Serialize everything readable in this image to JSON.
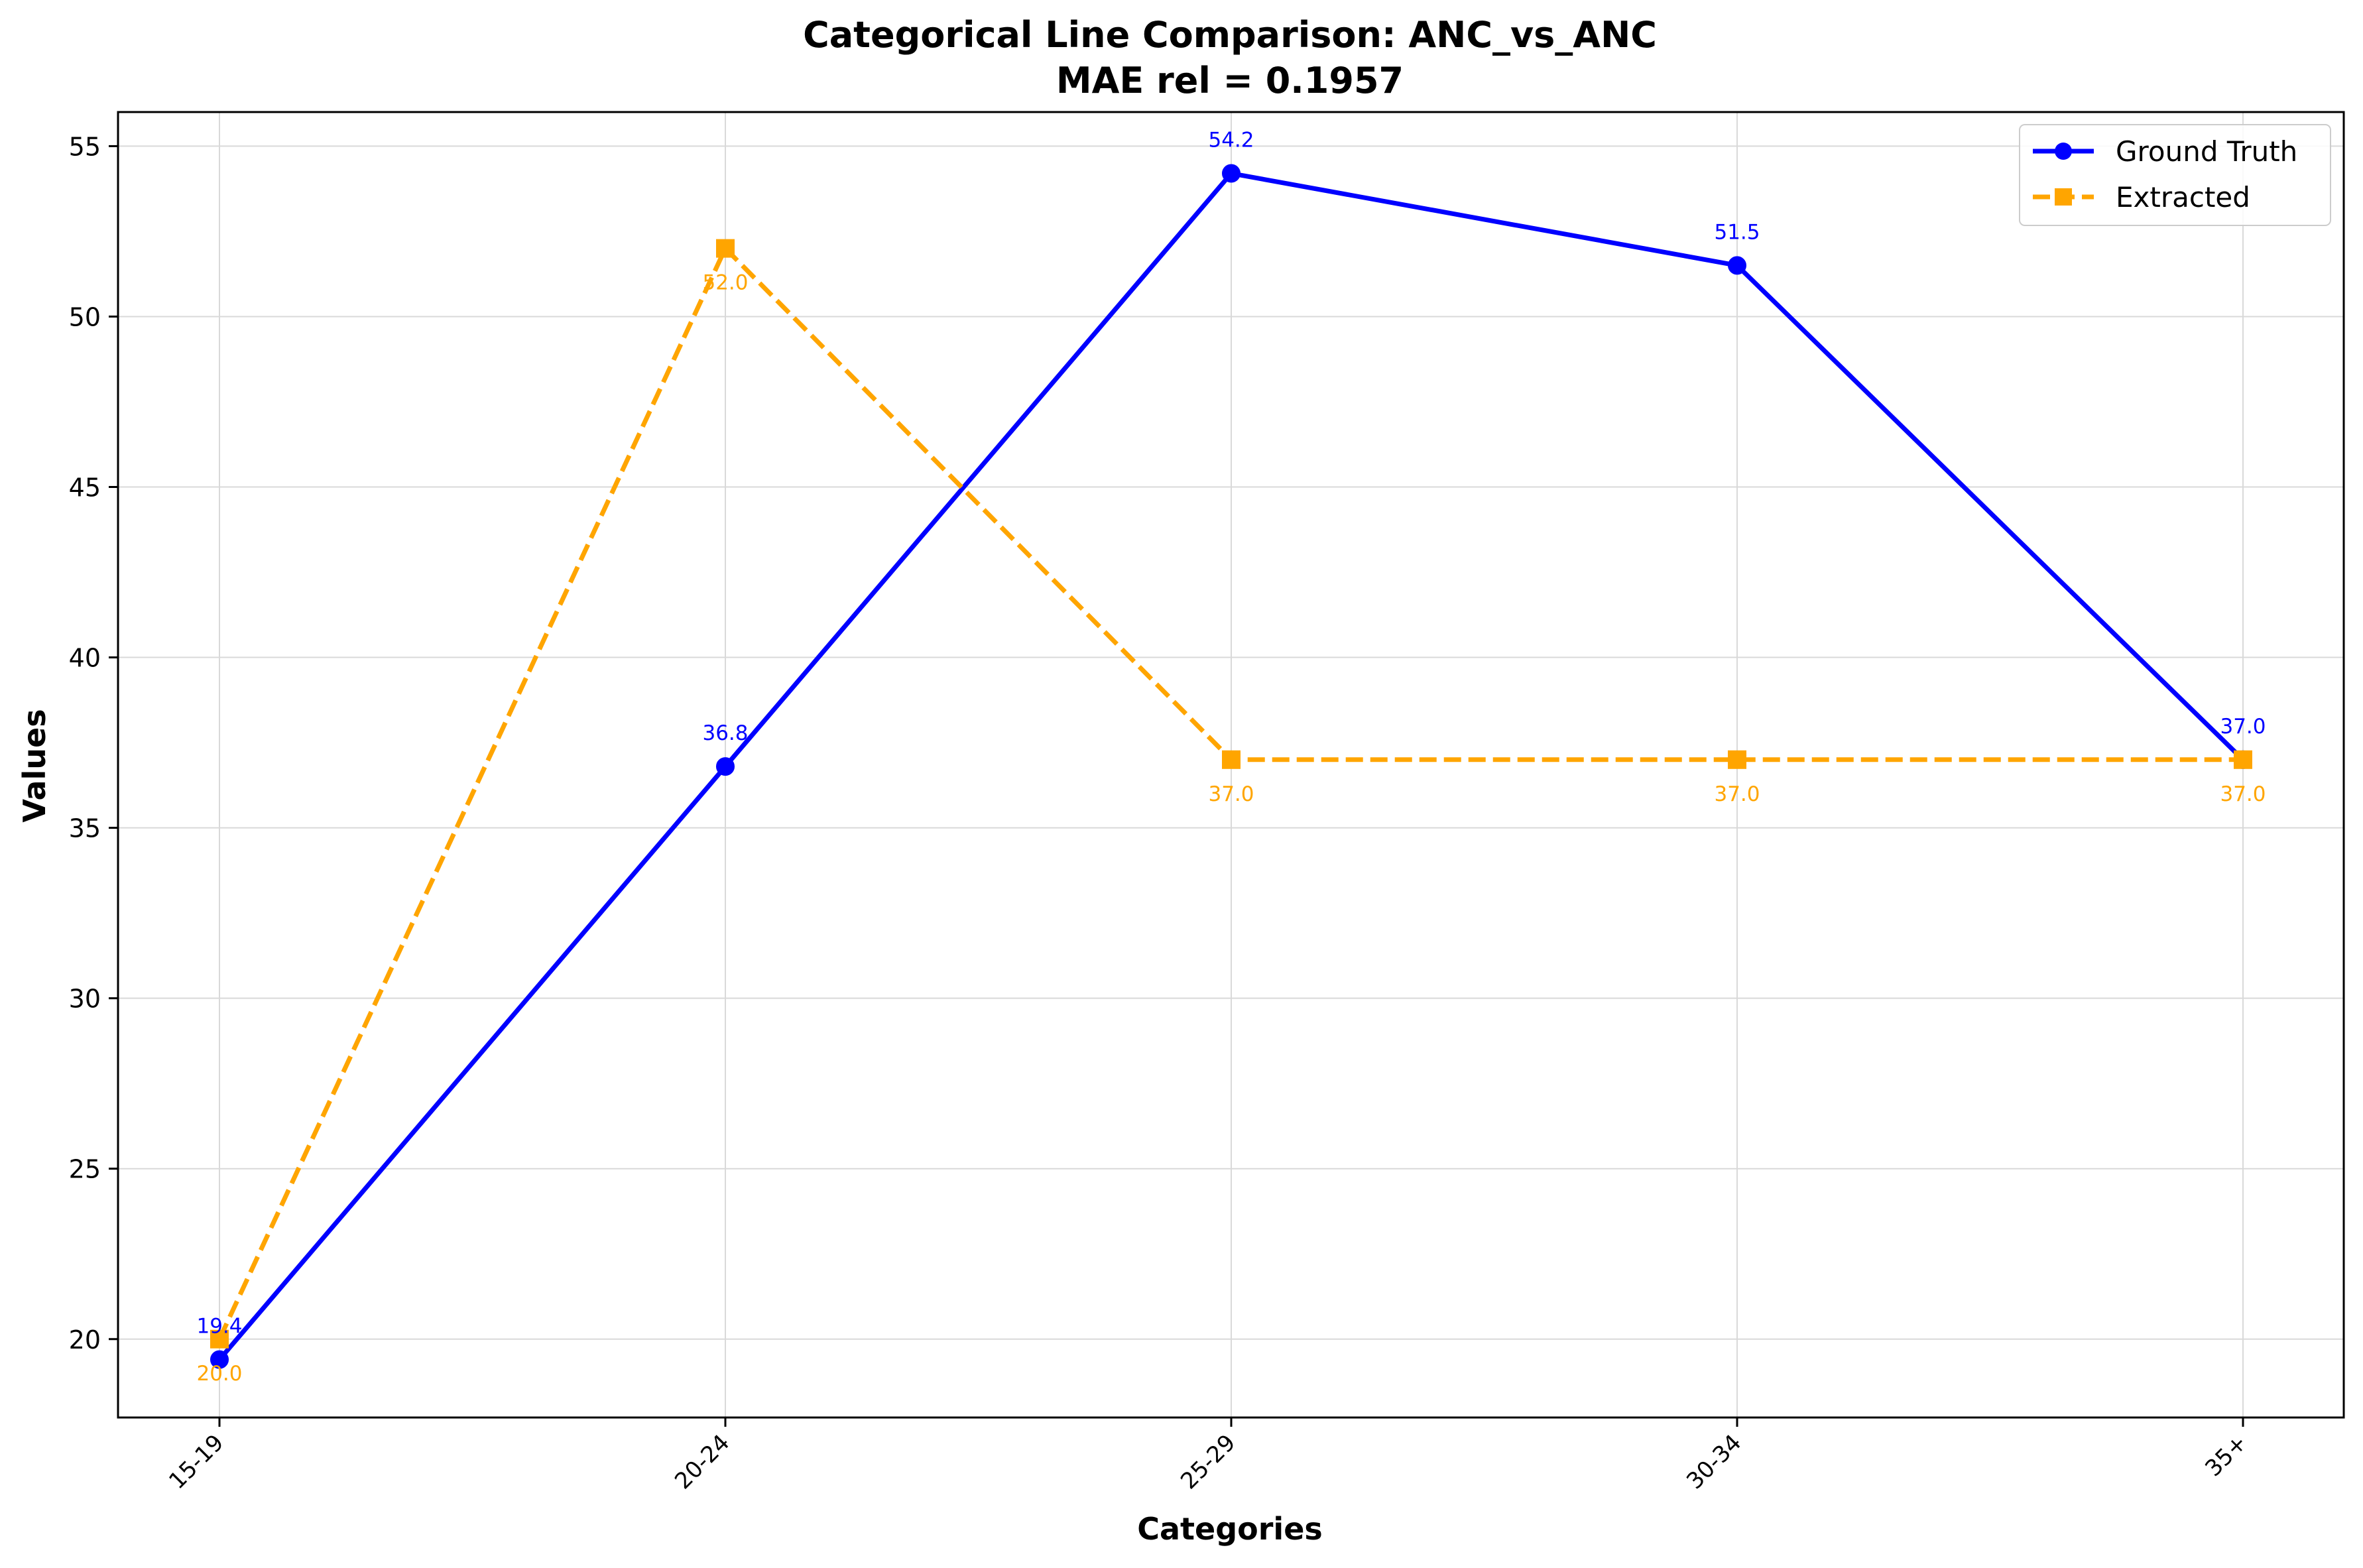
{
  "chart_data": {
    "type": "line",
    "title_line1": "Categorical Line Comparison: ANC_vs_ANC",
    "title_line2": "MAE rel = 0.1957",
    "xlabel": "Categories",
    "ylabel": "Values",
    "categories": [
      "15-19",
      "20-24",
      "25-29",
      "30-34",
      "35+"
    ],
    "ylim": [
      17.7,
      56.0
    ],
    "yticks": [
      20,
      25,
      30,
      35,
      40,
      45,
      50,
      55
    ],
    "grid": true,
    "legend_position": "top-right",
    "series": [
      {
        "name": "Ground Truth",
        "values": [
          19.4,
          36.8,
          54.2,
          51.5,
          37.0
        ],
        "labels": [
          "19.4",
          "36.8",
          "54.2",
          "51.5",
          "37.0"
        ],
        "color": "#0000ff",
        "marker": "circle",
        "dash": "solid",
        "label_position": "above"
      },
      {
        "name": "Extracted",
        "values": [
          20.0,
          52.0,
          37.0,
          37.0,
          37.0
        ],
        "labels": [
          "20.0",
          "52.0",
          "37.0",
          "37.0",
          "37.0"
        ],
        "color": "#ffa500",
        "marker": "square",
        "dash": "dashed",
        "label_position": "below"
      }
    ]
  }
}
